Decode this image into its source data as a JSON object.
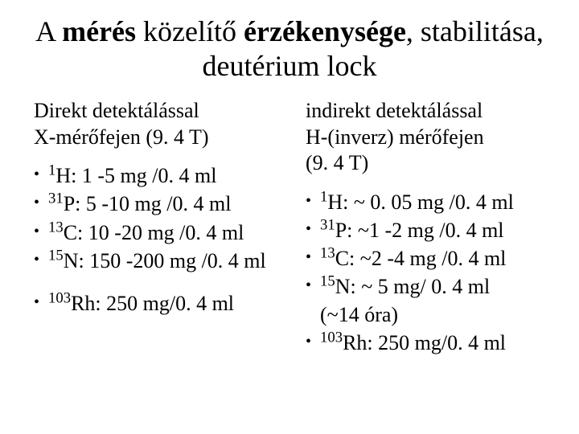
{
  "title": {
    "pre": "A ",
    "bold1": "mérés",
    "mid1": " közelítő ",
    "bold2": "érzékenysége",
    "mid2": ", stabilitása, deutérium lock"
  },
  "left": {
    "intro_l1": "Direkt detektálással",
    "intro_l2": "X-mérőfejen (9. 4 T)",
    "items": [
      {
        "mass": "1",
        "sym": "H:",
        "rest": "  1 -5 mg /0. 4 ml"
      },
      {
        "mass": "31",
        "sym": "P:",
        "rest": "  5 -10 mg /0. 4 ml"
      },
      {
        "mass": "13",
        "sym": "C:",
        "rest": "   10 -20 mg /0. 4 ml"
      },
      {
        "mass": "15",
        "sym": "N:",
        "rest": " 150 -200 mg /0. 4 ml"
      }
    ],
    "extra": {
      "mass": "103",
      "sym": "Rh:",
      "rest": " 250 mg/0. 4 ml"
    }
  },
  "right": {
    "intro_l1": "indirekt detektálással",
    "intro_l2": "H-(inverz) mérőfejen",
    "intro_l3": "(9. 4 T)",
    "items": [
      {
        "mass": "1",
        "sym": "H:",
        "rest": "   ~ 0. 05 mg /0. 4 ml"
      },
      {
        "mass": "31",
        "sym": "P:",
        "rest": "   ~1 -2 mg /0. 4 ml"
      },
      {
        "mass": "13",
        "sym": "C:",
        "rest": "   ~2 -4 mg /0. 4 ml"
      },
      {
        "mass": "15",
        "sym": "N:",
        "rest": " ~ 5 mg/ 0. 4 ml",
        "cont": "(~14 óra)"
      }
    ],
    "extra": {
      "mass": "103",
      "sym": "Rh:",
      "rest": " 250 mg/0. 4 ml"
    }
  },
  "colors": {
    "text": "#000000",
    "background": "#ffffff"
  }
}
